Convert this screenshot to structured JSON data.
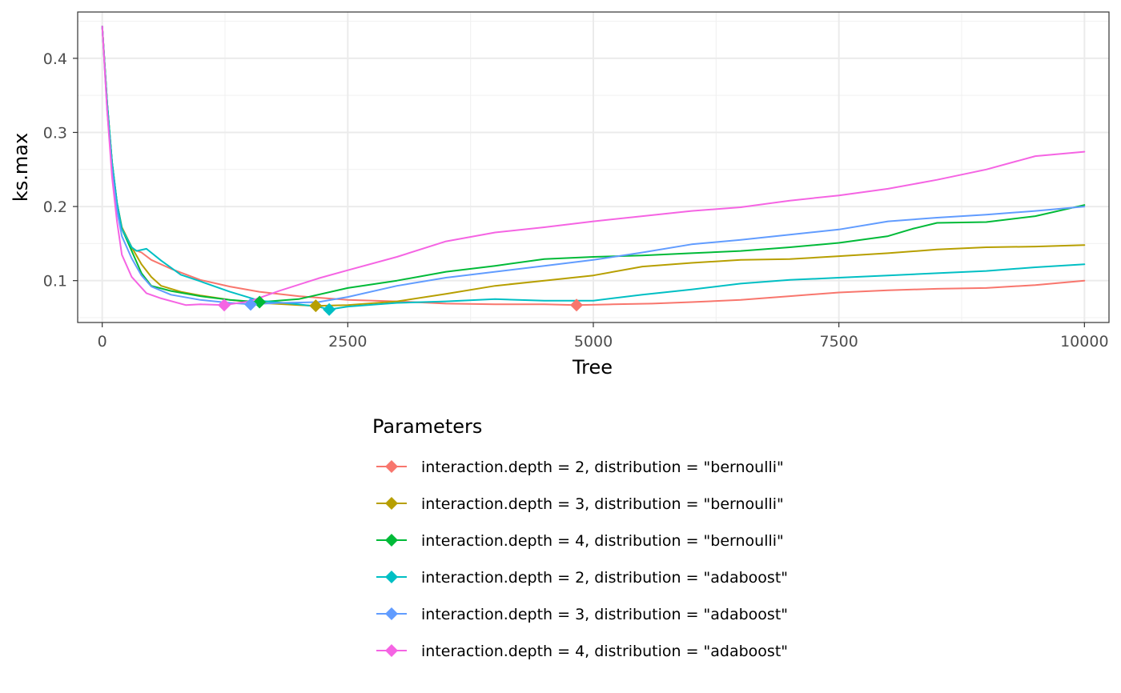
{
  "chart_data": {
    "type": "line",
    "title": "",
    "xlabel": "Tree",
    "ylabel": "ks.max",
    "xlim": [
      -250,
      10250
    ],
    "ylim": [
      0.0435,
      0.4625
    ],
    "x_ticks": [
      0,
      2500,
      5000,
      7500,
      10000
    ],
    "x_tick_labels": [
      "0",
      "2500",
      "5000",
      "7500",
      "10000"
    ],
    "y_ticks": [
      0.1,
      0.2,
      0.3,
      0.4
    ],
    "y_tick_labels": [
      "0.1",
      "0.2",
      "0.3",
      "0.4"
    ],
    "grid": true,
    "legend": {
      "title": "Parameters",
      "position": "bottom"
    },
    "series": [
      {
        "name": "interaction.depth = 2, distribution = \"bernoulli\"",
        "color": "#F8766D",
        "x": [
          0,
          50,
          100,
          150,
          200,
          300,
          400,
          500,
          700,
          1000,
          1300,
          1600,
          2000,
          2500,
          3000,
          3500,
          4000,
          4500,
          4829,
          5200,
          5600,
          6000,
          6500,
          7000,
          7500,
          8000,
          8500,
          9000,
          9500,
          10000
        ],
        "values": [
          0.443,
          0.34,
          0.26,
          0.2,
          0.17,
          0.143,
          0.138,
          0.128,
          0.116,
          0.101,
          0.092,
          0.085,
          0.079,
          0.074,
          0.072,
          0.069,
          0.068,
          0.068,
          0.067,
          0.068,
          0.069,
          0.071,
          0.074,
          0.079,
          0.084,
          0.087,
          0.089,
          0.09,
          0.094,
          0.1
        ],
        "optimum": {
          "x": 4829,
          "y": 0.067
        }
      },
      {
        "name": "interaction.depth = 3, distribution = \"bernoulli\"",
        "color": "#B79F00",
        "x": [
          0,
          50,
          100,
          150,
          200,
          300,
          400,
          500,
          600,
          800,
          1000,
          1300,
          1600,
          2000,
          2174,
          2500,
          3000,
          3500,
          4000,
          4500,
          5000,
          5500,
          6000,
          6500,
          7000,
          7500,
          8000,
          8500,
          9000,
          9500,
          10000
        ],
        "values": [
          0.443,
          0.34,
          0.26,
          0.205,
          0.172,
          0.145,
          0.122,
          0.105,
          0.093,
          0.085,
          0.08,
          0.074,
          0.07,
          0.067,
          0.066,
          0.067,
          0.072,
          0.082,
          0.093,
          0.1,
          0.107,
          0.119,
          0.124,
          0.128,
          0.129,
          0.133,
          0.137,
          0.142,
          0.145,
          0.146,
          0.148
        ],
        "optimum": {
          "x": 2174,
          "y": 0.066
        }
      },
      {
        "name": "interaction.depth = 4, distribution = \"bernoulli\"",
        "color": "#00BA38",
        "x": [
          0,
          50,
          100,
          150,
          200,
          300,
          400,
          500,
          700,
          1000,
          1300,
          1600,
          2000,
          2500,
          3000,
          3500,
          4000,
          4500,
          5000,
          5500,
          6000,
          6500,
          7000,
          7500,
          8000,
          8250,
          8500,
          9000,
          9500,
          10000
        ],
        "values": [
          0.443,
          0.34,
          0.26,
          0.205,
          0.17,
          0.14,
          0.11,
          0.093,
          0.086,
          0.079,
          0.074,
          0.071,
          0.075,
          0.09,
          0.1,
          0.112,
          0.12,
          0.129,
          0.132,
          0.134,
          0.137,
          0.14,
          0.145,
          0.151,
          0.16,
          0.17,
          0.178,
          0.179,
          0.187,
          0.202
        ],
        "optimum": {
          "x": 1602,
          "y": 0.071
        }
      },
      {
        "name": "interaction.depth = 2, distribution = \"adaboost\"",
        "color": "#00BFC4",
        "x": [
          0,
          50,
          100,
          150,
          200,
          300,
          350,
          450,
          600,
          800,
          1000,
          1300,
          1600,
          2000,
          2200,
          2311,
          2500,
          3000,
          3500,
          4000,
          4500,
          5000,
          5500,
          6000,
          6500,
          7000,
          7500,
          8000,
          8500,
          9000,
          9500,
          10000
        ],
        "values": [
          0.443,
          0.34,
          0.26,
          0.205,
          0.17,
          0.145,
          0.14,
          0.143,
          0.127,
          0.108,
          0.099,
          0.085,
          0.073,
          0.068,
          0.065,
          0.061,
          0.065,
          0.07,
          0.072,
          0.075,
          0.073,
          0.073,
          0.081,
          0.088,
          0.096,
          0.101,
          0.104,
          0.107,
          0.11,
          0.113,
          0.118,
          0.122
        ],
        "optimum": {
          "x": 2311,
          "y": 0.061
        }
      },
      {
        "name": "interaction.depth = 3, distribution = \"adaboost\"",
        "color": "#619CFF",
        "x": [
          0,
          50,
          100,
          150,
          200,
          300,
          400,
          500,
          700,
          1000,
          1300,
          1511,
          1800,
          2200,
          2500,
          3000,
          3500,
          4000,
          4500,
          5000,
          5500,
          6000,
          6500,
          7000,
          7500,
          8000,
          8500,
          9000,
          9500,
          10000
        ],
        "values": [
          0.443,
          0.33,
          0.25,
          0.195,
          0.16,
          0.13,
          0.107,
          0.092,
          0.081,
          0.074,
          0.07,
          0.068,
          0.07,
          0.071,
          0.078,
          0.093,
          0.104,
          0.112,
          0.12,
          0.128,
          0.138,
          0.149,
          0.155,
          0.162,
          0.169,
          0.18,
          0.185,
          0.189,
          0.194,
          0.2
        ],
        "optimum": {
          "x": 1511,
          "y": 0.068
        }
      },
      {
        "name": "interaction.depth = 4, distribution = \"adaboost\"",
        "color": "#F564E3",
        "x": [
          0,
          50,
          100,
          150,
          200,
          300,
          450,
          600,
          850,
          1000,
          1242,
          1500,
          1800,
          2200,
          2500,
          3000,
          3500,
          4000,
          4500,
          5000,
          5500,
          6000,
          6500,
          7000,
          7500,
          8000,
          8500,
          9000,
          9500,
          10000
        ],
        "values": [
          0.443,
          0.33,
          0.24,
          0.18,
          0.135,
          0.105,
          0.083,
          0.076,
          0.067,
          0.068,
          0.067,
          0.072,
          0.086,
          0.103,
          0.114,
          0.132,
          0.153,
          0.165,
          0.172,
          0.18,
          0.187,
          0.194,
          0.199,
          0.208,
          0.215,
          0.224,
          0.236,
          0.25,
          0.268,
          0.274
        ],
        "optimum": {
          "x": 1242,
          "y": 0.067
        }
      }
    ]
  }
}
